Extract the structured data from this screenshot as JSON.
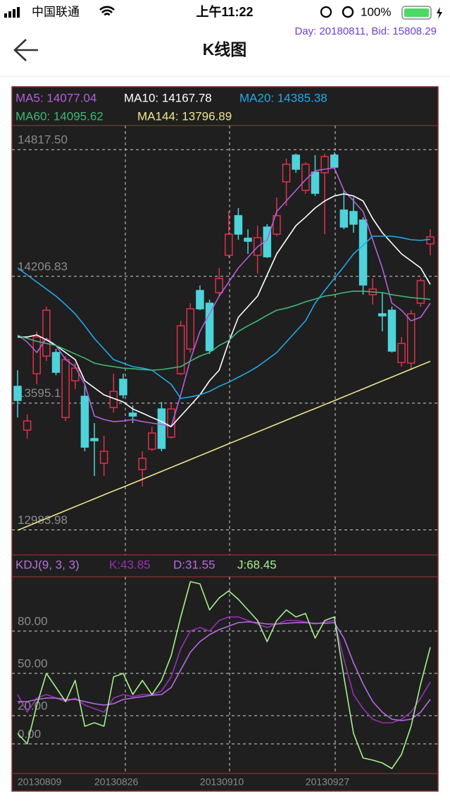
{
  "status_bar": {
    "carrier": "中国联通",
    "time": "上午11:22",
    "battery": "100%"
  },
  "header": {
    "info": "Day: 20180811, Bid: 15808.29",
    "title": "K线图"
  },
  "chart_data": [
    {
      "type": "candlestick",
      "open": [
        13676,
        13465,
        13737,
        13822,
        13839,
        13526,
        13703,
        13628,
        13424,
        13305,
        13574,
        13710,
        13547,
        13275,
        13373,
        13567,
        13431,
        13737,
        13856,
        14138,
        14077,
        14128,
        14308,
        14499,
        14390,
        14308,
        14444,
        14410,
        14662,
        14791,
        14621,
        14709,
        14706,
        14791,
        14526,
        14519,
        14478,
        14118,
        14026,
        14043,
        13791,
        13788,
        14077,
        14363
      ],
      "high": [
        13754,
        13540,
        13941,
        14060,
        13856,
        13822,
        13788,
        13686,
        13499,
        13438,
        13737,
        13737,
        13584,
        13363,
        13482,
        13601,
        13601,
        13992,
        14077,
        14162,
        14094,
        14247,
        14519,
        14536,
        14434,
        14451,
        14458,
        14587,
        14774,
        14798,
        14757,
        14791,
        14798,
        14805,
        14621,
        14587,
        14492,
        14196,
        14128,
        14060,
        13914,
        14043,
        14196,
        14434
      ],
      "low": [
        13526,
        13424,
        13686,
        13798,
        13730,
        13509,
        13662,
        13363,
        13244,
        13244,
        13550,
        13618,
        13499,
        13193,
        13363,
        13363,
        13424,
        13730,
        13839,
        14043,
        13832,
        14111,
        14298,
        14383,
        14315,
        14220,
        14295,
        14400,
        14546,
        14706,
        14604,
        14594,
        14410,
        14723,
        14434,
        14417,
        14118,
        14070,
        13941,
        13839,
        13771,
        13754,
        14060,
        14308
      ],
      "close": [
        13608,
        13509,
        13914,
        14043,
        13744,
        13805,
        13764,
        13383,
        13414,
        13363,
        13652,
        13635,
        13533,
        13329,
        13451,
        13377,
        13567,
        13968,
        14050,
        14050,
        13849,
        14196,
        14410,
        14410,
        14376,
        14393,
        14301,
        14499,
        14747,
        14723,
        14747,
        14607,
        14784,
        14733,
        14444,
        14458,
        14165,
        14145,
        14016,
        13846,
        13883,
        14026,
        14186,
        14397
      ],
      "up_color": "#e0304a",
      "down_color": "#4fd3da",
      "ylim": [
        12870,
        14910
      ],
      "yticks": [
        {
          "value": 14817.5,
          "label": "14817.50"
        },
        14206.83,
        13595.16,
        12983.98
      ],
      "grid": true,
      "series": [
        {
          "name": "MA5: 14077.04",
          "color": "#b45fdc",
          "values": [
            13924,
            13890,
            13839,
            13907,
            13873,
            13805,
            13771,
            13686,
            13533,
            13516,
            13506,
            13509,
            13516,
            13506,
            13499,
            13492,
            13482,
            13635,
            13805,
            13941,
            14026,
            14111,
            14179,
            14247,
            14298,
            14349,
            14383,
            14519,
            14570,
            14621,
            14672,
            14716,
            14723,
            14730,
            14621,
            14570,
            14519,
            14383,
            14247,
            14077,
            14043,
            13992,
            14009,
            14077.04
          ]
        },
        {
          "name": "MA10: 14167.78",
          "color": "#ffffff",
          "values": [
            13914,
            13914,
            13924,
            13900,
            13873,
            13839,
            13805,
            13703,
            13669,
            13635,
            13618,
            13601,
            13567,
            13547,
            13526,
            13506,
            13482,
            13533,
            13584,
            13635,
            13703,
            13754,
            13890,
            14009,
            14060,
            14111,
            14213,
            14315,
            14383,
            14451,
            14492,
            14536,
            14570,
            14594,
            14604,
            14594,
            14570,
            14485,
            14417,
            14366,
            14315,
            14281,
            14247,
            14167.78
          ]
        },
        {
          "name": "MA20: 14385.38",
          "color": "#22a9ec",
          "values": [
            14247,
            14213,
            14179,
            14145,
            14111,
            14070,
            14026,
            13968,
            13907,
            13856,
            13805,
            13788,
            13771,
            13764,
            13754,
            13720,
            13686,
            13618,
            13625,
            13635,
            13652,
            13676,
            13696,
            13720,
            13744,
            13771,
            13805,
            13839,
            13890,
            13941,
            13992,
            14077,
            14138,
            14196,
            14254,
            14315,
            14356,
            14400,
            14400,
            14400,
            14393,
            14383,
            14380,
            14385.38
          ]
        },
        {
          "name": "MA60: 14095.62",
          "color": "#3fb877",
          "values": [
            13921,
            13907,
            13893,
            13883,
            13873,
            13853,
            13832,
            13812,
            13788,
            13778,
            13771,
            13764,
            13761,
            13757,
            13754,
            13757,
            13764,
            13771,
            13798,
            13822,
            13839,
            13873,
            13897,
            13941,
            13968,
            13992,
            14019,
            14043,
            14053,
            14067,
            14084,
            14097,
            14111,
            14118,
            14128,
            14135,
            14135,
            14131,
            14128,
            14118,
            14111,
            14104,
            14100,
            14095.62
          ]
        },
        {
          "name": "MA144: 13796.89",
          "color": "#efe58f",
          "values": [
            12982,
            13001,
            13020,
            13039,
            13058,
            13077,
            13096,
            13115,
            13134,
            13153,
            13172,
            13190,
            13209,
            13228,
            13247,
            13266,
            13285,
            13304,
            13323,
            13342,
            13361,
            13380,
            13399,
            13418,
            13437,
            13456,
            13475,
            13494,
            13513,
            13532,
            13551,
            13569,
            13588,
            13607,
            13626,
            13645,
            13664,
            13683,
            13702,
            13721,
            13740,
            13759,
            13778,
            13796.89
          ]
        }
      ]
    },
    {
      "type": "line",
      "title": "KDJ(9, 3, 3)",
      "title_color": "#b46ee0",
      "categories": [
        "20130809",
        null,
        null,
        null,
        null,
        null,
        null,
        null,
        "20130826",
        null,
        null,
        null,
        null,
        null,
        null,
        null,
        null,
        null,
        null,
        "20130910",
        null,
        null,
        null,
        null,
        null,
        null,
        null,
        null,
        null,
        null,
        "20130927",
        null,
        null,
        null,
        null,
        null,
        null,
        null,
        null,
        null,
        null,
        null,
        null,
        null
      ],
      "ylim": [
        -20,
        130
      ],
      "yticks": [
        {
          "value": 80,
          "label": "80.00"
        },
        {
          "value": 50,
          "label": "50.00"
        },
        {
          "value": 20,
          "label": "20.00"
        },
        {
          "value": 0,
          "label": "0.00"
        }
      ],
      "grid": true,
      "series": [
        {
          "name": "K:43.85",
          "color": "#9a2fb8",
          "values": [
            35,
            22.5,
            32.5,
            35,
            32.5,
            30,
            32.5,
            27.5,
            25,
            22.5,
            32.5,
            35,
            33.5,
            35,
            35,
            37.5,
            47.5,
            67.5,
            80,
            82.5,
            80,
            87.5,
            90,
            90,
            87.5,
            85,
            82.5,
            85,
            87.5,
            87.5,
            86.5,
            85,
            86.5,
            87.5,
            60,
            35,
            25,
            17.5,
            15,
            15,
            17.5,
            22.5,
            32.5,
            43.85
          ]
        },
        {
          "name": "D:31.55",
          "color": "#b96ae6",
          "values": [
            30,
            30,
            31.5,
            32.5,
            32.5,
            31.5,
            31.5,
            30,
            28.5,
            27.5,
            28.5,
            31.5,
            32.5,
            33.5,
            34.5,
            35,
            40,
            52.5,
            65,
            72.5,
            77.5,
            81,
            83.5,
            86,
            86.5,
            86,
            85,
            85,
            85.5,
            86,
            86,
            85.5,
            85.5,
            86,
            75,
            57.5,
            42.5,
            30,
            22.5,
            17.5,
            16.5,
            17.5,
            22.5,
            31.55
          ]
        },
        {
          "name": "J:68.45",
          "color": "#a4f08c",
          "values": [
            7.5,
            0,
            27.5,
            50,
            40,
            30,
            45,
            12.5,
            15,
            12.5,
            47.5,
            50,
            35,
            45,
            35,
            45,
            62.5,
            90,
            115,
            113.5,
            95,
            103.5,
            108.5,
            102.5,
            95,
            87.5,
            72.5,
            87.5,
            95,
            90,
            92.5,
            75,
            87.5,
            90,
            47.5,
            7.5,
            -10,
            -11.5,
            -13.5,
            -17.5,
            -7.5,
            12.5,
            42.5,
            68.45
          ]
        }
      ]
    }
  ]
}
